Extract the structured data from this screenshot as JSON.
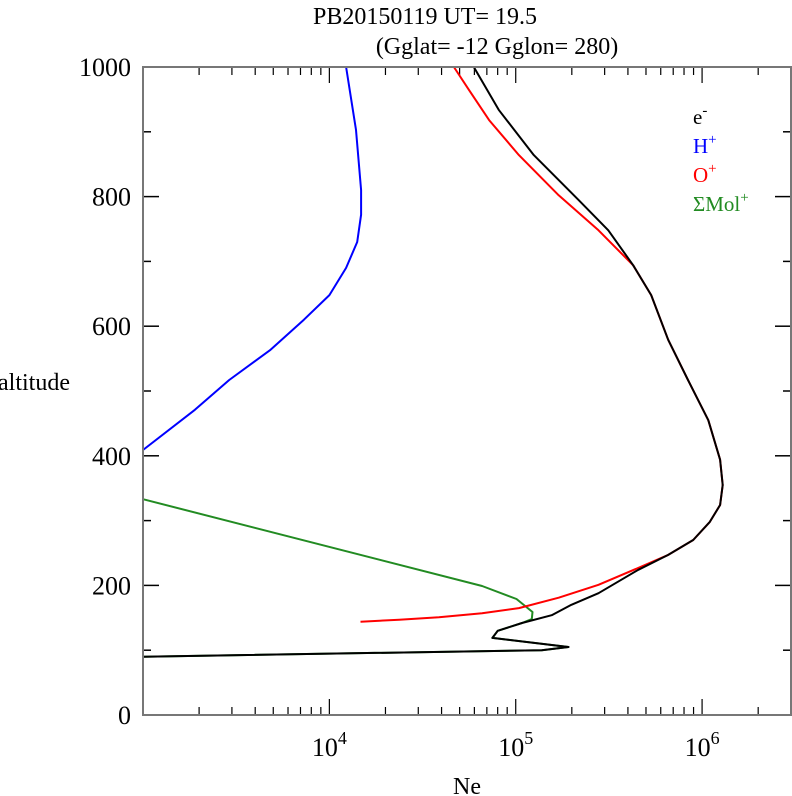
{
  "chart_data": {
    "type": "line",
    "title": "PB20150119   UT=  19.5",
    "subtitle": "(Gglat= -12   Gglon=  280)",
    "xlabel": "Ne",
    "ylabel": "altitude",
    "xscale": "log",
    "xlim": [
      1000,
      3000000
    ],
    "ylim": [
      0,
      1000
    ],
    "yticks": [
      0,
      200,
      400,
      600,
      800,
      1000
    ],
    "ytick_labels": [
      "0",
      "200",
      "400",
      "600",
      "800",
      "1000"
    ],
    "xticks": [
      10000,
      100000,
      1000000
    ],
    "xtick_labels": [
      {
        "base": "10",
        "exp": "4"
      },
      {
        "base": "10",
        "exp": "5"
      },
      {
        "base": "10",
        "exp": "6"
      }
    ],
    "legend_placement": "top-right",
    "series": [
      {
        "name": "e",
        "sup": "-",
        "color": "#000000",
        "points": [
          [
            59600,
            1000
          ],
          [
            81000,
            934
          ],
          [
            125000,
            864
          ],
          [
            217000,
            795
          ],
          [
            314000,
            748
          ],
          [
            427000,
            694
          ],
          [
            533000,
            648
          ],
          [
            658000,
            579
          ],
          [
            840000,
            517
          ],
          [
            1080000,
            455
          ],
          [
            1250000,
            394
          ],
          [
            1290000,
            355
          ],
          [
            1250000,
            324
          ],
          [
            1100000,
            298
          ],
          [
            896000,
            270
          ],
          [
            658000,
            247
          ],
          [
            455000,
            224
          ],
          [
            278000,
            188
          ],
          [
            199000,
            170
          ],
          [
            156000,
            154
          ],
          [
            108000,
            142
          ],
          [
            80000,
            130
          ],
          [
            75000,
            119
          ],
          [
            192000,
            105
          ],
          [
            138000,
            100
          ],
          [
            1000,
            90
          ]
        ]
      },
      {
        "name": "H",
        "sup": "+",
        "color": "#0000ff",
        "points": [
          [
            12300,
            1000
          ],
          [
            13900,
            903
          ],
          [
            14800,
            810
          ],
          [
            14800,
            772
          ],
          [
            14100,
            730
          ],
          [
            12300,
            690
          ],
          [
            10000,
            648
          ],
          [
            7300,
            610
          ],
          [
            4800,
            563
          ],
          [
            2900,
            517
          ],
          [
            1900,
            471
          ],
          [
            1000,
            409
          ]
        ]
      },
      {
        "name": "O",
        "sup": "+",
        "color": "#ff0000",
        "points": [
          [
            46600,
            1000
          ],
          [
            56000,
            965
          ],
          [
            72000,
            918
          ],
          [
            104000,
            864
          ],
          [
            170000,
            802
          ],
          [
            278000,
            748
          ],
          [
            427000,
            694
          ],
          [
            533000,
            648
          ],
          [
            658000,
            579
          ],
          [
            840000,
            517
          ],
          [
            1080000,
            455
          ],
          [
            1250000,
            394
          ],
          [
            1290000,
            355
          ],
          [
            1250000,
            324
          ],
          [
            1100000,
            298
          ],
          [
            896000,
            270
          ],
          [
            658000,
            247
          ],
          [
            455000,
            227
          ],
          [
            278000,
            201
          ],
          [
            170000,
            181
          ],
          [
            104000,
            165
          ],
          [
            66000,
            157
          ],
          [
            38700,
            151
          ],
          [
            23700,
            147
          ],
          [
            14700,
            144
          ]
        ]
      },
      {
        "name": "ΣMol",
        "sup": "+",
        "color": "#228b22",
        "points": [
          [
            1000,
            333
          ],
          [
            66000,
            199
          ],
          [
            101000,
            179
          ],
          [
            123000,
            159
          ],
          [
            122000,
            148
          ],
          [
            108000,
            142
          ],
          [
            80000,
            130
          ],
          [
            75000,
            119
          ],
          [
            192000,
            105
          ],
          [
            138000,
            100
          ],
          [
            1000,
            90
          ]
        ]
      }
    ]
  }
}
